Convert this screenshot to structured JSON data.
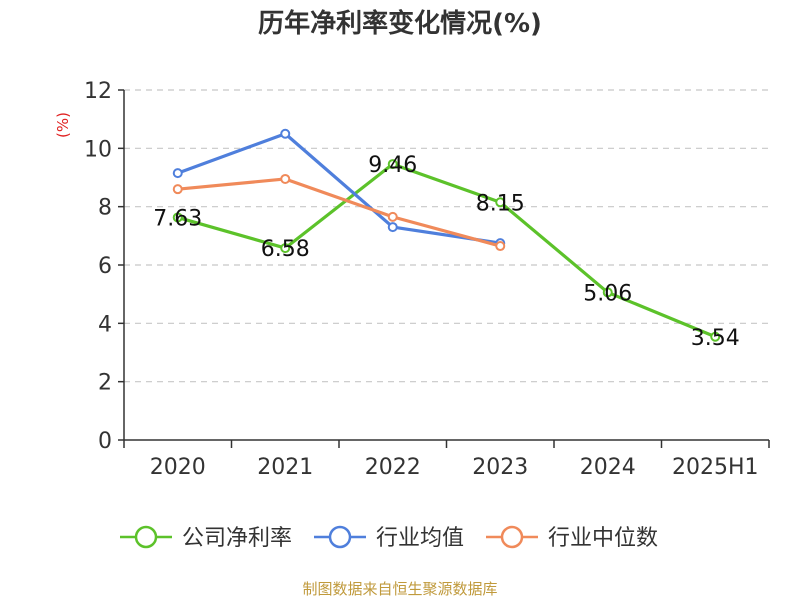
{
  "chart_data": {
    "type": "line",
    "title": "历年净利率变化情况(%)",
    "ylabel": "(%)",
    "xlabel": "",
    "categories": [
      "2020",
      "2021",
      "2022",
      "2023",
      "2024",
      "2025H1"
    ],
    "ylim": [
      0,
      12
    ],
    "yticks": [
      0,
      2,
      4,
      6,
      8,
      10,
      12
    ],
    "grid": true,
    "legend_position": "bottom",
    "series": [
      {
        "name": "公司净利率",
        "color": "#5cc22a",
        "values": [
          7.63,
          6.58,
          9.46,
          8.15,
          5.06,
          3.54
        ],
        "labels": [
          "7.63",
          "6.58",
          "9.46",
          "8.15",
          "5.06",
          "3.54"
        ]
      },
      {
        "name": "行业均值",
        "color": "#4f7fdc",
        "values": [
          9.15,
          10.5,
          7.3,
          6.75,
          null,
          null
        ]
      },
      {
        "name": "行业中位数",
        "color": "#f08a5a",
        "values": [
          8.6,
          8.95,
          7.65,
          6.65,
          null,
          null
        ]
      }
    ]
  },
  "source": "制图数据来自恒生聚源数据库"
}
